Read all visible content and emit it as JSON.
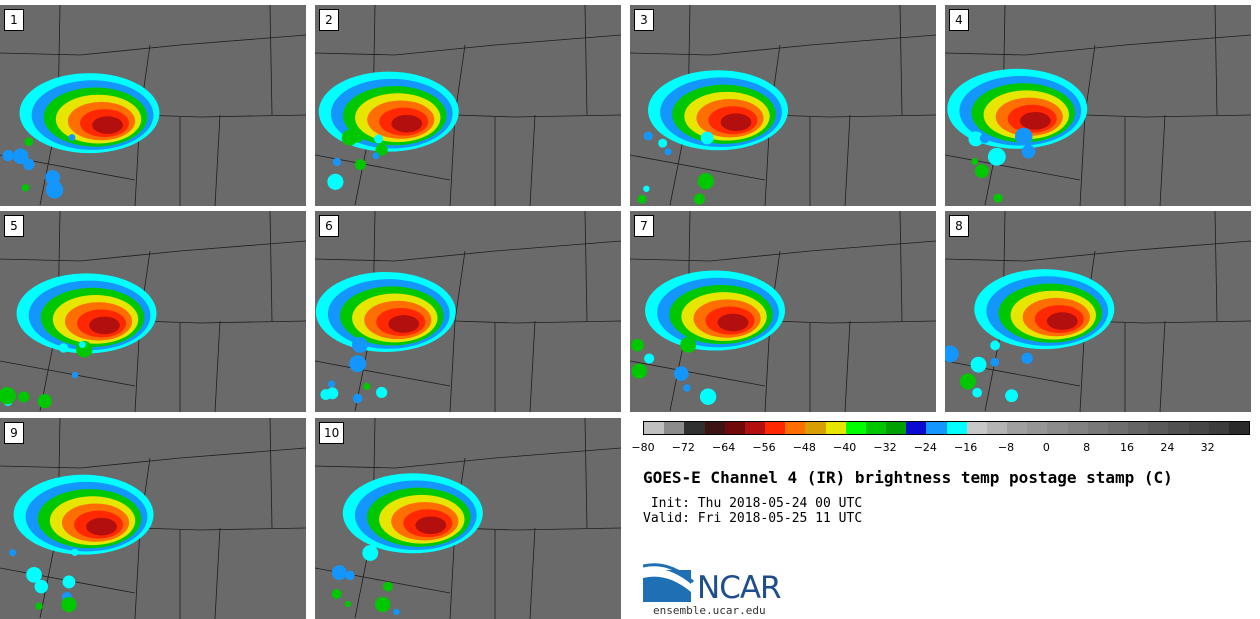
{
  "panels": [
    {
      "label": "1"
    },
    {
      "label": "2"
    },
    {
      "label": "3"
    },
    {
      "label": "4"
    },
    {
      "label": "5"
    },
    {
      "label": "6"
    },
    {
      "label": "7"
    },
    {
      "label": "8"
    },
    {
      "label": "9"
    },
    {
      "label": "10"
    }
  ],
  "colorbar": {
    "colors": [
      "#c0c0c0",
      "#8c8c8c",
      "#303030",
      "#3c1414",
      "#700a0a",
      "#b40f0f",
      "#ff2800",
      "#ff6e00",
      "#d7a000",
      "#e6e600",
      "#00ff00",
      "#00c800",
      "#00a000",
      "#0a0ad2",
      "#1496ff",
      "#00ffff",
      "#c8c8c8",
      "#b4b4b4",
      "#a0a0a0",
      "#969696",
      "#8c8c8c",
      "#828282",
      "#787878",
      "#6e6e6e",
      "#646464",
      "#5a5a5a",
      "#505050",
      "#464646",
      "#3c3c3c",
      "#2a2a2a"
    ],
    "ticks": [
      "−80",
      "−72",
      "−64",
      "−56",
      "−48",
      "−40",
      "−32",
      "−24",
      "−16",
      "−8",
      "0",
      "8",
      "16",
      "24",
      "32"
    ],
    "range": [
      -80,
      40
    ]
  },
  "title": "GOES-E Channel 4 (IR) brightness temp postage stamp (C)",
  "init": " Init: Thu 2018-05-24 00 UTC",
  "valid": "Valid: Fri 2018-05-25 11 UTC",
  "logo": {
    "name": "NCAR",
    "url": "ensemble.ucar.edu"
  }
}
